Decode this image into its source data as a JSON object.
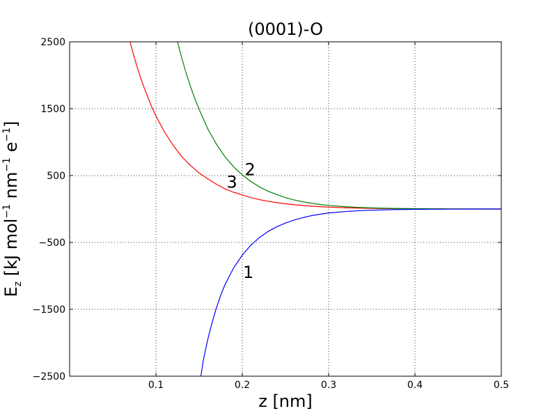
{
  "chart_data": {
    "type": "line",
    "title": "(0001)-O",
    "xlabel": "z [nm]",
    "ylabel": {
      "main": "E",
      "sub": "z",
      "rest_a": " [kJ mol",
      "sup1": "−1",
      "rest_b": " nm",
      "sup2": "−1",
      "rest_c": " e",
      "sup3": "−1",
      "rest_d": "]"
    },
    "xlim": [
      0.0,
      0.5
    ],
    "ylim": [
      -2500,
      2500
    ],
    "x_ticks": [
      0.1,
      0.2,
      0.3,
      0.4,
      0.5
    ],
    "x_tick_labels": [
      "0.1",
      "0.2",
      "0.3",
      "0.4",
      "0.5"
    ],
    "y_ticks": [
      -2500,
      -1500,
      -500,
      500,
      1500,
      2500
    ],
    "y_tick_labels": [
      "−2500",
      "−1500",
      "−500",
      "500",
      "1500",
      "2500"
    ],
    "grid": true,
    "colors": {
      "red": "#ff0000",
      "green": "#008000",
      "blue": "#0000ff"
    },
    "series": [
      {
        "key": "red",
        "color": "#ff0000",
        "x": [
          0.07,
          0.075,
          0.08,
          0.085,
          0.09,
          0.095,
          0.1,
          0.11,
          0.12,
          0.13,
          0.14,
          0.15,
          0.16,
          0.17,
          0.18,
          0.19,
          0.2,
          0.21,
          0.22,
          0.23,
          0.24,
          0.25,
          0.26,
          0.27,
          0.28,
          0.29,
          0.3,
          0.32,
          0.34,
          0.36,
          0.38,
          0.4,
          0.42,
          0.44,
          0.46,
          0.48,
          0.5
        ],
        "y": [
          2500,
          2260,
          2050,
          1860,
          1690,
          1530,
          1390,
          1150,
          950,
          780,
          650,
          540,
          450,
          370,
          300,
          250,
          210,
          170,
          140,
          115,
          95,
          78,
          64,
          52,
          43,
          35,
          28,
          18,
          12,
          8,
          5,
          3,
          2,
          1,
          1,
          0,
          0
        ]
      },
      {
        "key": "green",
        "color": "#008000",
        "x": [
          0.125,
          0.13,
          0.135,
          0.14,
          0.145,
          0.15,
          0.16,
          0.17,
          0.18,
          0.19,
          0.2,
          0.21,
          0.22,
          0.23,
          0.24,
          0.25,
          0.26,
          0.27,
          0.28,
          0.29,
          0.3,
          0.32,
          0.34,
          0.36,
          0.38,
          0.4,
          0.42,
          0.44,
          0.46,
          0.48,
          0.5
        ],
        "y": [
          2500,
          2250,
          2030,
          1830,
          1650,
          1490,
          1200,
          970,
          780,
          630,
          510,
          410,
          330,
          265,
          215,
          170,
          135,
          108,
          86,
          68,
          54,
          34,
          21,
          13,
          8,
          5,
          3,
          2,
          1,
          0,
          0
        ]
      },
      {
        "key": "blue",
        "color": "#0000ff",
        "x": [
          0.152,
          0.155,
          0.16,
          0.165,
          0.17,
          0.175,
          0.18,
          0.19,
          0.2,
          0.21,
          0.22,
          0.23,
          0.24,
          0.25,
          0.26,
          0.27,
          0.28,
          0.29,
          0.3,
          0.32,
          0.34,
          0.36,
          0.38,
          0.4,
          0.42,
          0.44,
          0.46,
          0.48,
          0.5
        ],
        "y": [
          -2500,
          -2250,
          -1950,
          -1700,
          -1480,
          -1290,
          -1130,
          -880,
          -690,
          -540,
          -425,
          -335,
          -265,
          -210,
          -165,
          -130,
          -100,
          -78,
          -60,
          -37,
          -23,
          -14,
          -8,
          -5,
          -3,
          -2,
          -1,
          0,
          0
        ]
      }
    ],
    "annotations": [
      {
        "text": "1",
        "x": 0.207,
        "y": -950
      },
      {
        "text": "2",
        "x": 0.209,
        "y": 590
      },
      {
        "text": "3",
        "x": 0.188,
        "y": 400
      }
    ]
  }
}
